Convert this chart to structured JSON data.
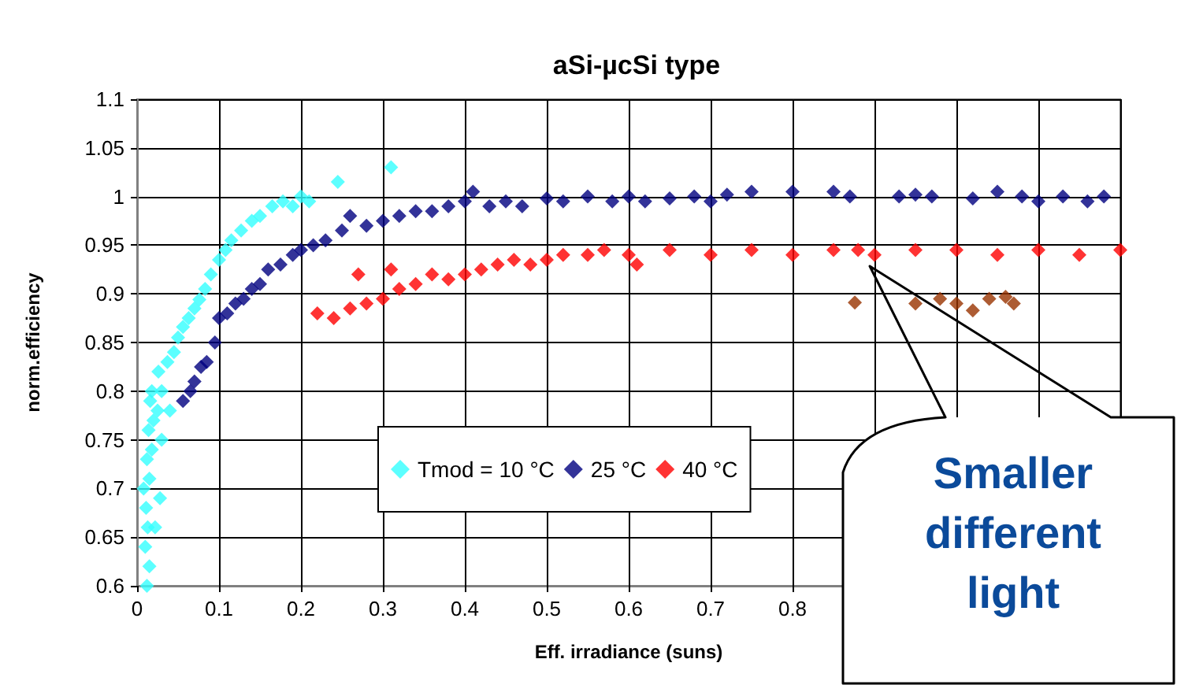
{
  "chart_data": {
    "type": "scatter",
    "title": "aSi-µcSi type",
    "xlabel": "Eff. irradiance (suns)",
    "ylabel": "norm.efficiency",
    "xlim": [
      0,
      1.2
    ],
    "xticks": [
      0,
      0.1,
      0.2,
      0.3,
      0.4,
      0.5,
      0.6,
      0.7,
      0.8,
      {
        "value": 0.9,
        "label": null
      },
      {
        "value": 1.0,
        "label": null
      },
      {
        "value": 1.1,
        "label": null
      },
      {
        "value": 1.2,
        "label": null
      }
    ],
    "ylim": [
      0.6,
      1.1
    ],
    "yticks": [
      0.6,
      0.65,
      0.7,
      0.75,
      0.8,
      0.85,
      0.9,
      0.95,
      1,
      1.05,
      1.1
    ],
    "grid": true,
    "legend": "bottom",
    "marker": "diamond",
    "annotations": [
      "Smaller different light"
    ],
    "series": [
      {
        "name": "Tmod = 10 °C",
        "color": "#33ffff",
        "x": [
          0.012,
          0.015,
          0.01,
          0.013,
          0.011,
          0.008,
          0.015,
          0.012,
          0.018,
          0.014,
          0.02,
          0.016,
          0.025,
          0.018,
          0.03,
          0.026,
          0.037,
          0.045,
          0.05,
          0.056,
          0.063,
          0.07,
          0.076,
          0.083,
          0.09,
          0.1,
          0.108,
          0.115,
          0.127,
          0.14,
          0.15,
          0.165,
          0.178,
          0.19,
          0.2,
          0.21,
          0.245,
          0.31,
          0.03,
          0.04,
          0.028,
          0.022
        ],
        "values": [
          0.6,
          0.62,
          0.64,
          0.66,
          0.68,
          0.7,
          0.71,
          0.73,
          0.74,
          0.76,
          0.77,
          0.79,
          0.78,
          0.8,
          0.8,
          0.82,
          0.83,
          0.84,
          0.855,
          0.866,
          0.875,
          0.885,
          0.894,
          0.905,
          0.92,
          0.935,
          0.945,
          0.955,
          0.965,
          0.975,
          0.98,
          0.99,
          0.995,
          0.99,
          1.0,
          0.995,
          1.015,
          1.03,
          0.75,
          0.78,
          0.69,
          0.66
        ]
      },
      {
        "name": "25 °C",
        "color": "#000080",
        "x": [
          0.056,
          0.065,
          0.07,
          0.078,
          0.085,
          0.095,
          0.1,
          0.11,
          0.12,
          0.13,
          0.14,
          0.15,
          0.16,
          0.175,
          0.19,
          0.2,
          0.215,
          0.23,
          0.25,
          0.26,
          0.28,
          0.3,
          0.32,
          0.34,
          0.36,
          0.38,
          0.4,
          0.41,
          0.43,
          0.45,
          0.47,
          0.5,
          0.52,
          0.55,
          0.58,
          0.6,
          0.62,
          0.65,
          0.68,
          0.7,
          0.72,
          0.75,
          0.8,
          0.85,
          0.87,
          0.93,
          0.95,
          0.97,
          1.02,
          1.05,
          1.08,
          1.1,
          1.13,
          1.16,
          1.18
        ],
        "values": [
          0.79,
          0.8,
          0.81,
          0.825,
          0.83,
          0.85,
          0.875,
          0.88,
          0.89,
          0.895,
          0.905,
          0.91,
          0.925,
          0.93,
          0.94,
          0.945,
          0.95,
          0.955,
          0.965,
          0.98,
          0.97,
          0.975,
          0.98,
          0.985,
          0.985,
          0.99,
          0.995,
          1.005,
          0.99,
          0.995,
          0.99,
          0.998,
          0.995,
          1.0,
          0.995,
          1.0,
          0.995,
          0.998,
          1.0,
          0.995,
          1.002,
          1.005,
          1.005,
          1.005,
          1.0,
          1.0,
          1.002,
          1.0,
          0.998,
          1.005,
          1.0,
          0.995,
          1.0,
          0.995,
          1.0
        ]
      },
      {
        "name": "40 °C",
        "color": "#ff0000",
        "x": [
          0.22,
          0.24,
          0.26,
          0.28,
          0.27,
          0.3,
          0.32,
          0.31,
          0.34,
          0.36,
          0.38,
          0.4,
          0.42,
          0.44,
          0.46,
          0.48,
          0.5,
          0.52,
          0.55,
          0.57,
          0.6,
          0.61,
          0.65,
          0.7,
          0.75,
          0.8,
          0.85,
          0.88,
          0.9,
          0.95,
          1.0,
          1.05,
          1.1,
          1.15,
          1.2
        ],
        "values": [
          0.88,
          0.875,
          0.885,
          0.89,
          0.92,
          0.895,
          0.905,
          0.925,
          0.91,
          0.92,
          0.915,
          0.92,
          0.925,
          0.93,
          0.935,
          0.93,
          0.935,
          0.94,
          0.94,
          0.945,
          0.94,
          0.93,
          0.945,
          0.94,
          0.945,
          0.94,
          0.945,
          0.945,
          0.94,
          0.945,
          0.945,
          0.94,
          0.945,
          0.94,
          0.945
        ]
      },
      {
        "color": "#993300",
        "x": [
          0.876,
          0.95,
          0.98,
          1.0,
          1.02,
          1.04,
          1.06,
          1.07
        ],
        "values": [
          0.891,
          0.89,
          0.895,
          0.89,
          0.883,
          0.895,
          0.897,
          0.89
        ]
      }
    ]
  }
}
